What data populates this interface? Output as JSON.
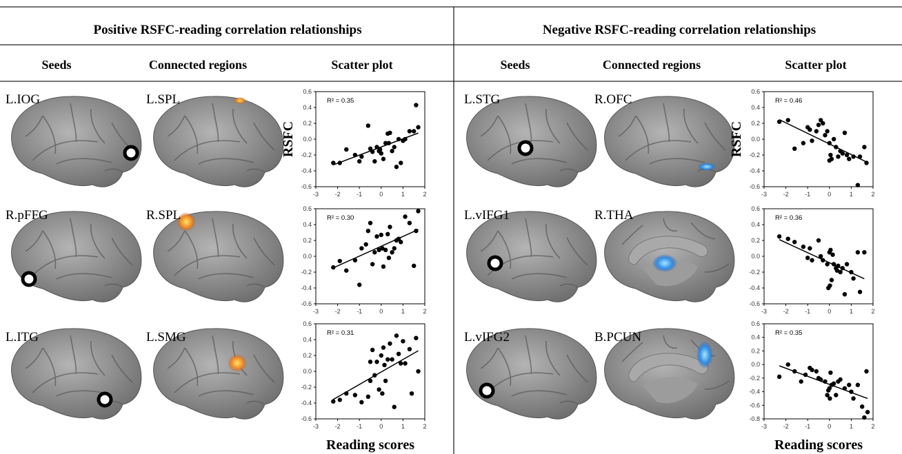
{
  "headers": {
    "positive": "Positive RSFC-reading correlation relationships",
    "negative": "Negative RSFC-reading correlation relationships"
  },
  "columns": [
    "Seeds",
    "Connected regions",
    "Scatter plot",
    "Seeds",
    "Connected regions",
    "Scatter plot"
  ],
  "panels": [
    {
      "seed": "L.IOG",
      "region": "L.SPL"
    },
    {
      "seed": "R.pFFG",
      "region": "R.SPL"
    },
    {
      "seed": "L.ITG",
      "region": "L.SMG"
    },
    {
      "seed": "L.STG",
      "region": "R.OFC"
    },
    {
      "seed": "L.vIFG1",
      "region": "R.THA"
    },
    {
      "seed": "L.vIFG2",
      "region": "B.PCUN"
    }
  ],
  "chart_data": [
    {
      "type": "scatter",
      "annotation": "R² = 0.35",
      "y_label": "RSFC",
      "xlim": [
        -3,
        2
      ],
      "xticks": [
        -3,
        -2,
        -1,
        0,
        1,
        2
      ],
      "ylim": [
        -0.6,
        0.6
      ],
      "yticks": [
        -0.6,
        -0.4,
        -0.2,
        {
          "value": 0,
          "label": "0.0"
        },
        0.2,
        0.4,
        0.6
      ],
      "x": [
        -2.2,
        -1.9,
        -1.6,
        -1.2,
        -1.0,
        -0.9,
        -0.6,
        -0.5,
        -0.4,
        -0.3,
        -0.2,
        -0.1,
        0,
        0.1,
        0.2,
        0.3,
        0.4,
        0.5,
        0.6,
        0.7,
        0.8,
        0.9,
        1.0,
        1.1,
        1.3,
        1.5,
        1.6,
        1.7,
        -0.05,
        0.35
      ],
      "values": [
        -0.3,
        -0.3,
        -0.13,
        -0.2,
        -0.28,
        -0.22,
        0.17,
        -0.12,
        -0.16,
        -0.28,
        -0.1,
        -0.15,
        -0.18,
        -0.25,
        -0.05,
        0.07,
        0.08,
        -0.15,
        -0.1,
        -0.35,
        0.0,
        -0.3,
        -0.02,
        0.0,
        0.1,
        0.1,
        0.43,
        0.15,
        -0.13,
        -0.05
      ]
    },
    {
      "type": "scatter",
      "annotation": "R² = 0.30",
      "xlim": [
        -3,
        2
      ],
      "xticks": [
        -3,
        -2,
        -1,
        0,
        1,
        2
      ],
      "ylim": [
        -0.6,
        0.6
      ],
      "yticks": [
        -0.6,
        -0.4,
        -0.2,
        {
          "value": 0,
          "label": "0.0"
        },
        0.2,
        0.4,
        0.6
      ],
      "x": [
        -2.2,
        -1.9,
        -1.6,
        -1.2,
        -1.0,
        -0.9,
        -0.7,
        -0.5,
        -0.4,
        -0.3,
        -0.2,
        -0.1,
        0,
        0.05,
        0.1,
        0.2,
        0.3,
        0.4,
        0.5,
        0.6,
        0.7,
        0.8,
        0.9,
        1.1,
        1.3,
        1.5,
        1.6,
        1.7,
        0.35,
        -0.6
      ],
      "values": [
        -0.14,
        -0.06,
        -0.18,
        -0.05,
        -0.36,
        0.1,
        0.15,
        0.42,
        -0.1,
        0.05,
        0.25,
        0.08,
        0.27,
        0.1,
        -0.13,
        0.08,
        0.28,
        0.37,
        0.05,
        0.1,
        0.2,
        0.22,
        0.18,
        0.5,
        0.42,
        -0.12,
        0.32,
        0.57,
        -0.02,
        0.32
      ]
    },
    {
      "type": "scatter",
      "annotation": "R² = 0.31",
      "x_label": "Reading scores",
      "xlim": [
        -3,
        2
      ],
      "xticks": [
        -3,
        -2,
        -1,
        0,
        1,
        2
      ],
      "ylim": [
        -0.6,
        0.6
      ],
      "yticks": [
        -0.6,
        -0.4,
        -0.2,
        {
          "value": 0,
          "label": "0.0"
        },
        0.2,
        0.4,
        0.6
      ],
      "x": [
        -2.2,
        -1.9,
        -1.6,
        -1.2,
        -0.9,
        -0.6,
        -0.5,
        -0.4,
        -0.3,
        -0.2,
        -0.1,
        0,
        0.05,
        0.1,
        0.2,
        0.3,
        0.4,
        0.5,
        0.6,
        0.7,
        0.8,
        0.9,
        1.0,
        1.3,
        1.4,
        1.6,
        1.7,
        -0.5,
        0.15,
        1.1
      ],
      "values": [
        -0.38,
        -0.36,
        -0.28,
        -0.3,
        -0.39,
        -0.32,
        0.12,
        0.27,
        -0.05,
        0.12,
        -0.23,
        0.2,
        -0.28,
        0.3,
        -0.12,
        0.15,
        0.35,
        0.15,
        -0.45,
        0.45,
        0.22,
        0.1,
        0.38,
        0.28,
        -0.28,
        0.42,
        0.0,
        -0.12,
        0.08,
        0.1
      ]
    },
    {
      "type": "scatter",
      "annotation": "R² = 0.46",
      "y_label": "RSFC",
      "xlim": [
        -3,
        2
      ],
      "xticks": [
        -3,
        -2,
        -1,
        0,
        1,
        2
      ],
      "ylim": [
        -0.6,
        0.6
      ],
      "yticks": [
        -0.6,
        -0.4,
        -0.2,
        {
          "value": 0,
          "label": "0.0"
        },
        0.2,
        0.4,
        0.6
      ],
      "x": [
        -2.3,
        -1.9,
        -1.6,
        -1.2,
        -1.0,
        -0.9,
        -0.8,
        -0.6,
        -0.5,
        -0.4,
        -0.3,
        -0.2,
        -0.1,
        0,
        0.05,
        0.1,
        0.2,
        0.3,
        0.4,
        0.5,
        0.6,
        0.7,
        0.8,
        0.9,
        1.1,
        1.3,
        1.4,
        1.6,
        1.7,
        0.0
      ],
      "values": [
        0.22,
        0.24,
        -0.12,
        -0.05,
        0.15,
        0.12,
        -0.02,
        0.1,
        0.18,
        0.24,
        0.2,
        0.05,
        0.1,
        -0.05,
        -0.2,
        -0.25,
        0.0,
        -0.1,
        -0.22,
        -0.15,
        -0.18,
        0.08,
        -0.2,
        -0.25,
        -0.22,
        -0.58,
        -0.22,
        -0.1,
        -0.3,
        -0.27
      ]
    },
    {
      "type": "scatter",
      "annotation": "R² = 0.36",
      "xlim": [
        -3,
        2
      ],
      "xticks": [
        -3,
        -2,
        -1,
        0,
        1,
        2
      ],
      "ylim": [
        -0.6,
        0.6
      ],
      "yticks": [
        -0.6,
        -0.4,
        -0.2,
        {
          "value": 0,
          "label": "0.0"
        },
        0.2,
        0.4,
        0.6
      ],
      "x": [
        -2.3,
        -1.9,
        -1.6,
        -1.2,
        -1.0,
        -0.9,
        -0.8,
        -0.5,
        -0.4,
        -0.3,
        -0.1,
        0,
        0.02,
        0.05,
        0.1,
        0.15,
        0.2,
        0.3,
        0.4,
        0.5,
        0.6,
        0.7,
        0.8,
        1.0,
        1.1,
        1.3,
        1.4,
        1.6,
        -0.05,
        0.35
      ],
      "values": [
        0.25,
        0.22,
        0.18,
        0.12,
        -0.02,
        0.1,
        -0.05,
        0.2,
        0.0,
        -0.05,
        -0.1,
        0.05,
        -0.37,
        0.08,
        -0.3,
        0.02,
        -0.1,
        -0.15,
        -0.12,
        -0.2,
        -0.15,
        -0.48,
        -0.1,
        -0.2,
        -0.28,
        0.05,
        -0.45,
        0.05,
        -0.4,
        -0.18
      ]
    },
    {
      "type": "scatter",
      "annotation": "R² = 0.35",
      "x_label": "Reading scores",
      "xlim": [
        -3,
        2
      ],
      "xticks": [
        -3,
        -2,
        -1,
        0,
        1,
        2
      ],
      "ylim": [
        -0.8,
        0.6
      ],
      "yticks": [
        -0.8,
        -0.6,
        -0.4,
        -0.2,
        {
          "value": 0,
          "label": "0.0"
        },
        0.2,
        0.4,
        0.6
      ],
      "x": [
        -2.3,
        -1.9,
        -1.6,
        -1.3,
        -1.1,
        -0.9,
        -0.8,
        -0.6,
        -0.5,
        -0.4,
        -0.2,
        -0.1,
        0,
        0.02,
        0.05,
        0.1,
        0.2,
        0.3,
        0.4,
        0.5,
        0.7,
        0.9,
        1.0,
        1.1,
        1.3,
        1.5,
        1.6,
        1.7,
        1.75,
        -0.05
      ],
      "values": [
        -0.18,
        0.0,
        -0.1,
        -0.25,
        -0.15,
        -0.05,
        -0.08,
        -0.1,
        -0.2,
        -0.22,
        -0.25,
        -0.45,
        -0.35,
        -0.5,
        -0.12,
        -0.3,
        -0.28,
        -0.45,
        -0.25,
        -0.22,
        -0.35,
        -0.3,
        -0.4,
        -0.5,
        -0.3,
        -0.62,
        -0.78,
        -0.1,
        -0.7,
        -0.38
      ]
    }
  ]
}
